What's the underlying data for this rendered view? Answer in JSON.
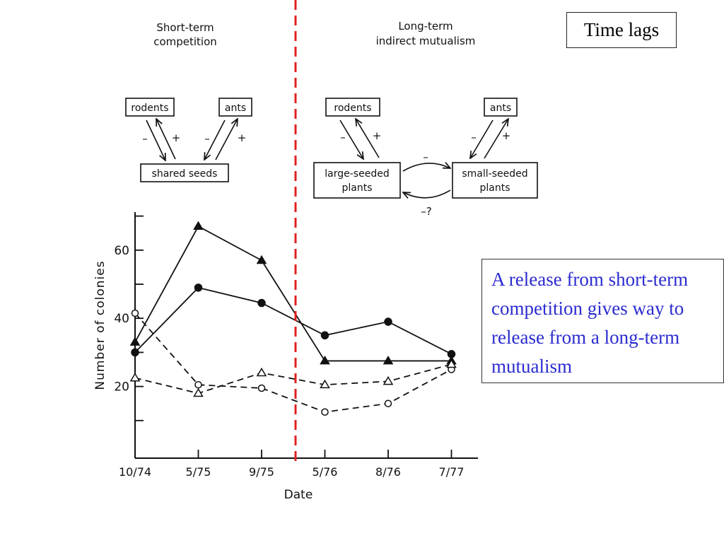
{
  "header": {
    "short_term_line1": "Short-term",
    "short_term_line2": "competition",
    "long_term_line1": "Long-term",
    "long_term_line2": "indirect mutualism"
  },
  "time_lags_label": "Time lags",
  "note_text": "A release from short-term competition gives way to release from a long-term mutualism",
  "diagram_left": {
    "rodents": "rodents",
    "ants": "ants",
    "shared_seeds": "shared seeds",
    "signs": [
      "–",
      "+",
      "–",
      "+"
    ]
  },
  "diagram_right": {
    "rodents": "rodents",
    "ants": "ants",
    "large_line1": "large-seeded",
    "large_line2": "plants",
    "small_line1": "small-seeded",
    "small_line2": "plants",
    "signs": [
      "–",
      "+",
      "–",
      "+"
    ],
    "top_sign": "–",
    "bottom_sign": "–?"
  },
  "colors": {
    "divider": "#e02020",
    "note_text": "#2b2bd0",
    "ink": "#111111"
  },
  "chart_data": {
    "type": "line",
    "categories": [
      "10/74",
      "5/75",
      "9/75",
      "5/76",
      "8/76",
      "7/77"
    ],
    "xlabel": "Date",
    "ylabel": "Number of colonies",
    "ylim": [
      0,
      70
    ],
    "yticks": [
      20,
      40,
      60
    ],
    "grid": false,
    "legend": "none",
    "series": [
      {
        "marker": "filled-triangle",
        "dash": "solid",
        "values": [
          33,
          67,
          57,
          27.5,
          27.5,
          27.5
        ]
      },
      {
        "marker": "filled-circle",
        "dash": "solid",
        "values": [
          30,
          49,
          44.5,
          35,
          39,
          29.5
        ]
      },
      {
        "marker": "open-circle",
        "dash": "dashed",
        "values": [
          41.5,
          20.5,
          19.5,
          12.5,
          15,
          25
        ]
      },
      {
        "marker": "open-triangle",
        "dash": "dashed",
        "values": [
          22.5,
          18,
          24,
          20.5,
          21.5,
          26.5
        ]
      }
    ]
  }
}
